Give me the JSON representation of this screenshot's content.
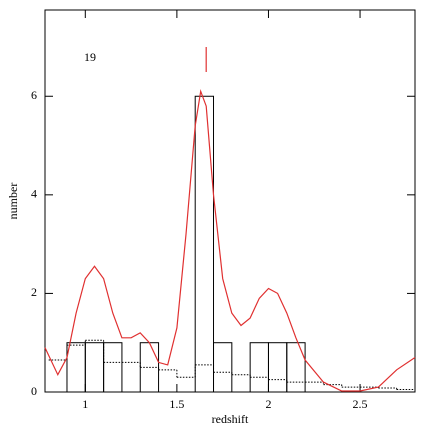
{
  "chart_data": {
    "type": "histogram",
    "xlabel": "redshift",
    "ylabel": "number",
    "annotation": "19",
    "marker_x": 1.66,
    "marker_color": "#e03030",
    "xlim": [
      0.78,
      2.8
    ],
    "ylim": [
      0,
      7.75
    ],
    "xticks": [
      1,
      1.5,
      2,
      2.5
    ],
    "yticks": [
      0,
      2,
      4,
      6
    ],
    "bins": [
      0.9,
      1.0,
      1.1,
      1.2,
      1.3,
      1.4,
      1.5,
      1.6,
      1.7,
      1.8,
      1.9,
      2.0,
      2.1,
      2.2
    ],
    "counts": [
      1,
      1,
      1,
      0,
      1,
      0,
      0,
      6,
      1,
      0,
      1,
      1,
      1
    ],
    "background": {
      "bins": [
        0.8,
        0.9,
        1.0,
        1.1,
        1.2,
        1.3,
        1.4,
        1.5,
        1.6,
        1.7,
        1.8,
        1.9,
        2.0,
        2.1,
        2.2,
        2.3,
        2.4,
        2.5,
        2.6,
        2.7,
        2.8
      ],
      "counts": [
        0.65,
        0.95,
        1.05,
        0.6,
        0.6,
        0.5,
        0.45,
        0.3,
        0.55,
        0.4,
        0.35,
        0.3,
        0.25,
        0.2,
        0.2,
        0.15,
        0.1,
        0.1,
        0.08,
        0.05
      ]
    },
    "curve": {
      "color": "#e03030",
      "x": [
        0.78,
        0.85,
        0.9,
        0.95,
        1.0,
        1.05,
        1.1,
        1.15,
        1.2,
        1.25,
        1.3,
        1.35,
        1.4,
        1.45,
        1.5,
        1.55,
        1.6,
        1.63,
        1.66,
        1.7,
        1.75,
        1.8,
        1.85,
        1.9,
        1.95,
        2.0,
        2.05,
        2.1,
        2.15,
        2.2,
        2.3,
        2.4,
        2.5,
        2.6,
        2.7,
        2.8
      ],
      "values": [
        0.9,
        0.35,
        0.7,
        1.6,
        2.3,
        2.55,
        2.3,
        1.6,
        1.1,
        1.1,
        1.2,
        1.0,
        0.6,
        0.55,
        1.3,
        3.2,
        5.4,
        6.1,
        5.8,
        4.0,
        2.3,
        1.6,
        1.35,
        1.5,
        1.9,
        2.1,
        2.0,
        1.6,
        1.1,
        0.65,
        0.2,
        0.02,
        0.02,
        0.1,
        0.45,
        0.7
      ]
    }
  }
}
